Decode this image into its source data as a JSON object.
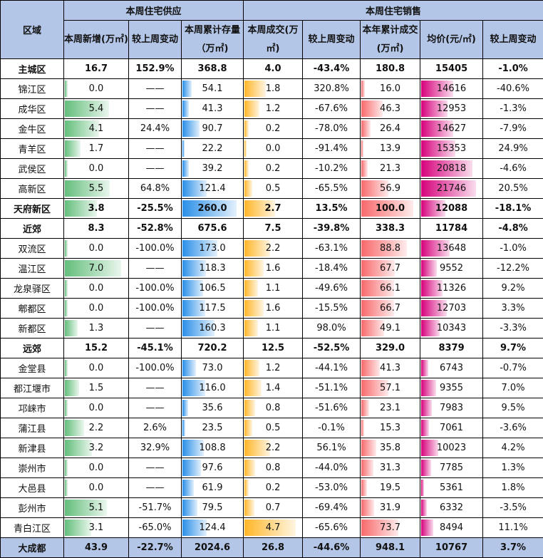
{
  "header": {
    "region": "区域",
    "supply": "本周住宅供应",
    "sales": "本周住宅销售",
    "cols": [
      "本周新增(万㎡)",
      "较上周变动",
      "本周累计存量（万㎡)",
      "本周成交(万㎡)",
      "较上周变动",
      "本年累计成交(万㎡)",
      "均价(元/㎡)",
      "较上周变动"
    ]
  },
  "bar_colors": {
    "new": "#63be7b",
    "stock": "#2a8fe8",
    "deal": "#ffb628",
    "ytd": "#f8696b",
    "price": "#d6007b"
  },
  "rows": [
    {
      "name": "主城区",
      "bold": true,
      "new": "16.7",
      "newchg": "152.9%",
      "stock": "368.8",
      "deal": "4.0",
      "dealchg": "-43.4%",
      "ytd": "180.8",
      "price": "15405",
      "pricechg": "-1.0%"
    },
    {
      "name": "锦江区",
      "new": "0.0",
      "newchg": "——",
      "stock": "54.1",
      "deal": "1.8",
      "dealchg": "320.8%",
      "ytd": "16.0",
      "price": "14616",
      "pricechg": "-40.6%"
    },
    {
      "name": "成华区",
      "new": "5.4",
      "newchg": "——",
      "stock": "41.3",
      "deal": "1.2",
      "dealchg": "-67.6%",
      "ytd": "46.3",
      "price": "12953",
      "pricechg": "-1.3%"
    },
    {
      "name": "金牛区",
      "new": "4.1",
      "newchg": "24.4%",
      "stock": "90.7",
      "deal": "0.2",
      "dealchg": "-78.0%",
      "ytd": "26.4",
      "price": "14627",
      "pricechg": "-7.9%"
    },
    {
      "name": "青羊区",
      "new": "1.7",
      "newchg": "——",
      "stock": "22.2",
      "deal": "0.0",
      "dealchg": "-91.4%",
      "ytd": "13.9",
      "price": "15353",
      "pricechg": "24.9%"
    },
    {
      "name": "武侯区",
      "new": "0.0",
      "newchg": "——",
      "stock": "39.2",
      "deal": "0.2",
      "dealchg": "-10.2%",
      "ytd": "21.3",
      "price": "20818",
      "pricechg": "-4.6%"
    },
    {
      "name": "高新区",
      "new": "5.5",
      "newchg": "64.8%",
      "stock": "121.4",
      "deal": "0.5",
      "dealchg": "-65.5%",
      "ytd": "56.9",
      "price": "21746",
      "pricechg": "20.5%"
    },
    {
      "name": "天府新区",
      "bold": true,
      "bars": true,
      "new": "3.8",
      "newchg": "-25.5%",
      "stock": "260.0",
      "deal": "2.7",
      "dealchg": "13.5%",
      "ytd": "100.0",
      "price": "12088",
      "pricechg": "-18.1%"
    },
    {
      "name": "近郊",
      "bold": true,
      "new": "8.3",
      "newchg": "-52.8%",
      "stock": "675.6",
      "deal": "7.5",
      "dealchg": "-39.8%",
      "ytd": "338.3",
      "price": "11784",
      "pricechg": "-4.8%"
    },
    {
      "name": "双流区",
      "new": "0.0",
      "newchg": "-100.0%",
      "stock": "173.0",
      "deal": "2.2",
      "dealchg": "-63.1%",
      "ytd": "88.8",
      "price": "13648",
      "pricechg": "-1.0%"
    },
    {
      "name": "温江区",
      "new": "7.0",
      "newchg": "——",
      "stock": "118.3",
      "deal": "1.6",
      "dealchg": "-18.4%",
      "ytd": "67.7",
      "price": "9552",
      "pricechg": "-12.2%"
    },
    {
      "name": "龙泉驿区",
      "new": "0.0",
      "newchg": "-100.0%",
      "stock": "106.5",
      "deal": "1.1",
      "dealchg": "-49.6%",
      "ytd": "66.1",
      "price": "11326",
      "pricechg": "9.2%"
    },
    {
      "name": "郫都区",
      "new": "0.0",
      "newchg": "-100.0%",
      "stock": "117.5",
      "deal": "1.6",
      "dealchg": "-15.5%",
      "ytd": "66.7",
      "price": "12703",
      "pricechg": "3.3%"
    },
    {
      "name": "新都区",
      "new": "1.3",
      "newchg": "——",
      "stock": "160.3",
      "deal": "1.1",
      "dealchg": "98.0%",
      "ytd": "49.1",
      "price": "10343",
      "pricechg": "-3.3%"
    },
    {
      "name": "远郊",
      "bold": true,
      "new": "15.2",
      "newchg": "-45.1%",
      "stock": "720.2",
      "deal": "12.5",
      "dealchg": "-52.5%",
      "ytd": "329.0",
      "price": "8379",
      "pricechg": "9.7%"
    },
    {
      "name": "金堂县",
      "new": "0.0",
      "newchg": "-100.0%",
      "stock": "73.0",
      "deal": "1.2",
      "dealchg": "-44.1%",
      "ytd": "41.3",
      "price": "6743",
      "pricechg": "-0.7%"
    },
    {
      "name": "都江堰市",
      "new": "1.5",
      "newchg": "——",
      "stock": "116.0",
      "deal": "1.4",
      "dealchg": "-51.1%",
      "ytd": "57.1",
      "price": "9355",
      "pricechg": "7.0%"
    },
    {
      "name": "邛崃市",
      "new": "0.0",
      "newchg": "——",
      "stock": "35.6",
      "deal": "0.8",
      "dealchg": "-51.6%",
      "ytd": "23.1",
      "price": "7983",
      "pricechg": "9.5%"
    },
    {
      "name": "蒲江县",
      "new": "2.2",
      "newchg": "2.6%",
      "stock": "23.5",
      "deal": "0.5",
      "dealchg": "-0.1%",
      "ytd": "15.3",
      "price": "7061",
      "pricechg": "-3.6%"
    },
    {
      "name": "新津县",
      "new": "3.2",
      "newchg": "32.9%",
      "stock": "108.8",
      "deal": "2.2",
      "dealchg": "56.1%",
      "ytd": "35.8",
      "price": "10023",
      "pricechg": "4.2%"
    },
    {
      "name": "崇州市",
      "new": "0.0",
      "newchg": "——",
      "stock": "97.6",
      "deal": "0.8",
      "dealchg": "-44.0%",
      "ytd": "31.3",
      "price": "7785",
      "pricechg": "1.3%"
    },
    {
      "name": "大邑县",
      "new": "0.0",
      "newchg": "——",
      "stock": "61.9",
      "deal": "0.2",
      "dealchg": "-53.0%",
      "ytd": "19.5",
      "price": "5361",
      "pricechg": "1.8%"
    },
    {
      "name": "彭州市",
      "new": "5.1",
      "newchg": "-51.7%",
      "stock": "79.5",
      "deal": "0.7",
      "dealchg": "-69.4%",
      "ytd": "31.9",
      "price": "6332",
      "pricechg": "-3.5%"
    },
    {
      "name": "青白江区",
      "new": "3.1",
      "newchg": "-65.0%",
      "stock": "124.4",
      "deal": "4.7",
      "dealchg": "-65.6%",
      "ytd": "73.7",
      "price": "8494",
      "pricechg": "11.1%"
    },
    {
      "name": "大成都",
      "bold": true,
      "total": true,
      "new": "43.9",
      "newchg": "-22.7%",
      "stock": "2024.6",
      "deal": "26.8",
      "dealchg": "-44.6%",
      "ytd": "948.1",
      "price": "10767",
      "pricechg": "3.7%"
    }
  ]
}
